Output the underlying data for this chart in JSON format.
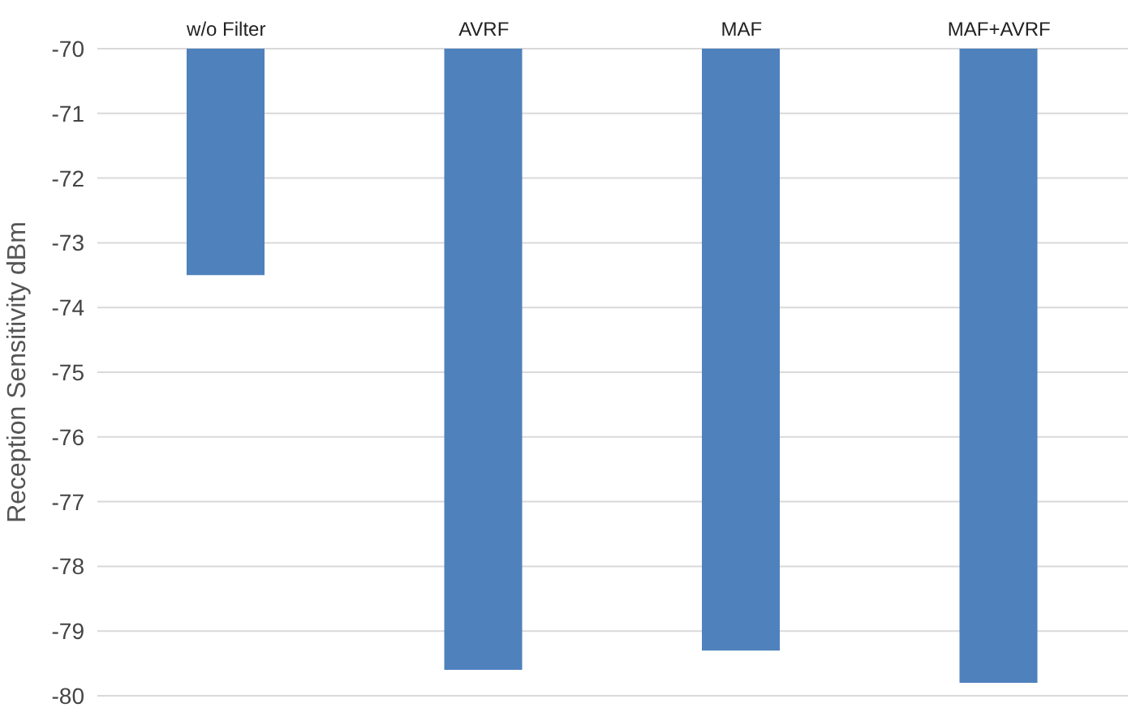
{
  "chart_data": {
    "type": "bar",
    "ylabel": "Reception Sensitivity   dBm",
    "categories": [
      "w/o Filter",
      "AVRF",
      "MAF",
      "MAF+AVRF"
    ],
    "series": [
      {
        "color": "#4f81bd",
        "values": [
          -73.5,
          -79.6,
          -79.3,
          -79.8
        ]
      }
    ],
    "ylim": [
      -80,
      -70
    ],
    "yticks": [
      -80,
      -79,
      -78,
      -77,
      -76,
      -75,
      -74,
      -73,
      -72,
      -71,
      -70
    ],
    "grid": "y",
    "legend": false
  }
}
